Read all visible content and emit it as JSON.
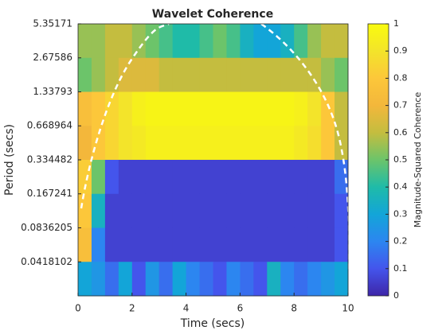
{
  "chart_data": {
    "type": "heatmap",
    "title": "Wavelet Coherence",
    "xlabel": "Time (secs)",
    "ylabel": "Period (secs)",
    "x": [
      0.25,
      0.75,
      1.25,
      1.75,
      2.25,
      2.75,
      3.25,
      3.75,
      4.25,
      4.75,
      5.25,
      5.75,
      6.25,
      6.75,
      7.25,
      7.75,
      8.25,
      8.75,
      9.25,
      9.75
    ],
    "y": [
      3.7842,
      1.8921,
      0.94605,
      0.47303,
      0.23651,
      0.11826,
      0.05913,
      0.02956
    ],
    "z": [
      [
        0.55,
        0.55,
        0.6,
        0.6,
        0.55,
        0.5,
        0.45,
        0.4,
        0.4,
        0.45,
        0.5,
        0.45,
        0.35,
        0.3,
        0.3,
        0.35,
        0.45,
        0.55,
        0.6,
        0.6
      ],
      [
        0.5,
        0.55,
        0.6,
        0.65,
        0.65,
        0.65,
        0.6,
        0.6,
        0.6,
        0.6,
        0.6,
        0.6,
        0.6,
        0.6,
        0.6,
        0.6,
        0.6,
        0.6,
        0.55,
        0.5
      ],
      [
        0.75,
        0.8,
        0.85,
        0.9,
        0.95,
        0.97,
        0.97,
        0.97,
        0.97,
        0.97,
        0.97,
        0.97,
        0.97,
        0.97,
        0.97,
        0.97,
        0.95,
        0.9,
        0.8,
        0.6
      ],
      [
        0.7,
        0.8,
        0.85,
        0.9,
        0.92,
        0.95,
        0.95,
        0.95,
        0.95,
        0.95,
        0.95,
        0.95,
        0.95,
        0.95,
        0.95,
        0.95,
        0.92,
        0.88,
        0.8,
        0.6
      ],
      [
        0.82,
        0.5,
        0.1,
        0.06,
        0.06,
        0.06,
        0.06,
        0.06,
        0.06,
        0.06,
        0.06,
        0.06,
        0.06,
        0.06,
        0.06,
        0.06,
        0.06,
        0.06,
        0.06,
        0.15
      ],
      [
        0.8,
        0.35,
        0.06,
        0.06,
        0.06,
        0.06,
        0.06,
        0.06,
        0.06,
        0.06,
        0.06,
        0.06,
        0.06,
        0.06,
        0.06,
        0.06,
        0.06,
        0.06,
        0.06,
        0.1
      ],
      [
        0.75,
        0.2,
        0.06,
        0.06,
        0.06,
        0.06,
        0.06,
        0.06,
        0.06,
        0.06,
        0.06,
        0.06,
        0.06,
        0.06,
        0.06,
        0.06,
        0.06,
        0.06,
        0.06,
        0.1
      ],
      [
        0.3,
        0.25,
        0.15,
        0.3,
        0.1,
        0.25,
        0.15,
        0.3,
        0.2,
        0.15,
        0.1,
        0.2,
        0.15,
        0.1,
        0.35,
        0.2,
        0.15,
        0.2,
        0.25,
        0.3
      ]
    ],
    "xlim": [
      0,
      10
    ],
    "xticks": [
      0,
      2,
      4,
      6,
      8,
      10
    ],
    "ylim": [
      0.0209051,
      5.35171
    ],
    "ylog": true,
    "yticks": [
      5.35171,
      2.67586,
      1.33793,
      0.668964,
      0.334482,
      0.167241,
      0.0836205,
      0.0418102
    ],
    "colormap": [
      "#3e26a8",
      "#4455ec",
      "#2c86f0",
      "#13a5d8",
      "#1fbba8",
      "#6cc46a",
      "#c4bd3f",
      "#f3b73b",
      "#fcc73a",
      "#f3e42a",
      "#f9fb0e"
    ],
    "colorbar": {
      "label": "Magnitude-Squared Coherence",
      "lim": [
        0,
        1
      ],
      "ticks": [
        0,
        0.1,
        0.2,
        0.3,
        0.4,
        0.5,
        0.6,
        0.7,
        0.8,
        0.9,
        1
      ]
    }
  }
}
